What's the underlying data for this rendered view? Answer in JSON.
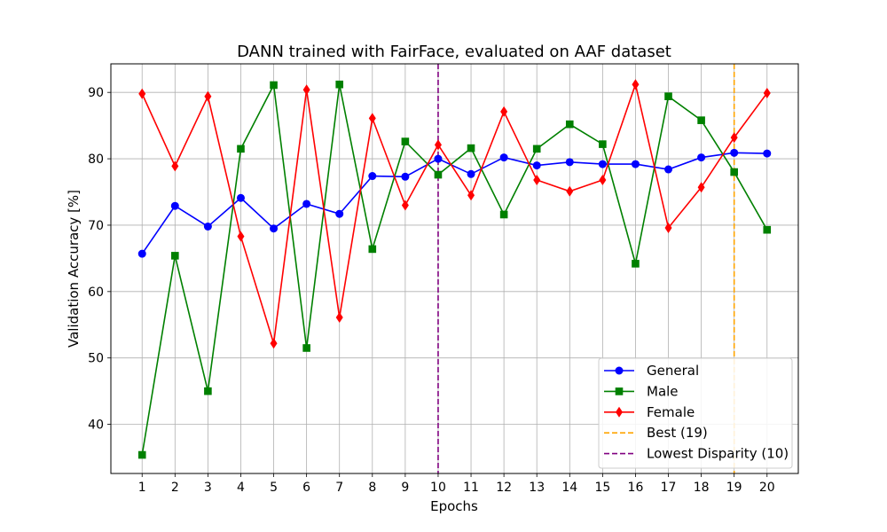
{
  "chart_data": {
    "type": "line",
    "title": "DANN trained with FairFace, evaluated on AAF dataset",
    "xlabel": "Epochs",
    "ylabel": "Validation Accuracy [%]",
    "x": [
      1,
      2,
      3,
      4,
      5,
      6,
      7,
      8,
      9,
      10,
      11,
      12,
      13,
      14,
      15,
      16,
      17,
      18,
      19,
      20
    ],
    "xlim": [
      0.05,
      20.95
    ],
    "ylim": [
      32.6,
      94.3
    ],
    "yticks": [
      40,
      50,
      60,
      70,
      80,
      90
    ],
    "grid": true,
    "legend_position": "lower-right",
    "series": [
      {
        "name": "General",
        "color": "#0000ff",
        "marker": "circle",
        "values": [
          65.7,
          72.9,
          69.8,
          74.1,
          69.5,
          73.2,
          71.7,
          77.4,
          77.3,
          80.0,
          77.7,
          80.2,
          79.0,
          79.5,
          79.2,
          79.2,
          78.4,
          80.2,
          80.9,
          80.8
        ]
      },
      {
        "name": "Male",
        "color": "#008000",
        "marker": "square",
        "values": [
          35.4,
          65.4,
          45.0,
          81.5,
          91.1,
          51.5,
          91.2,
          66.4,
          82.6,
          77.6,
          81.6,
          71.6,
          81.5,
          85.2,
          82.2,
          64.2,
          89.4,
          85.8,
          78.0,
          69.3
        ]
      },
      {
        "name": "Female",
        "color": "#ff0000",
        "marker": "diamond",
        "values": [
          89.8,
          78.9,
          89.4,
          68.3,
          52.2,
          90.4,
          56.1,
          86.1,
          73.0,
          82.1,
          74.5,
          87.1,
          76.8,
          75.1,
          76.8,
          91.2,
          69.6,
          75.7,
          83.2,
          89.9
        ]
      }
    ],
    "vlines": [
      {
        "name": "Best (19)",
        "x": 19,
        "color": "#ffa500"
      },
      {
        "name": "Lowest Disparity (10)",
        "x": 10,
        "color": "#800080"
      }
    ]
  }
}
